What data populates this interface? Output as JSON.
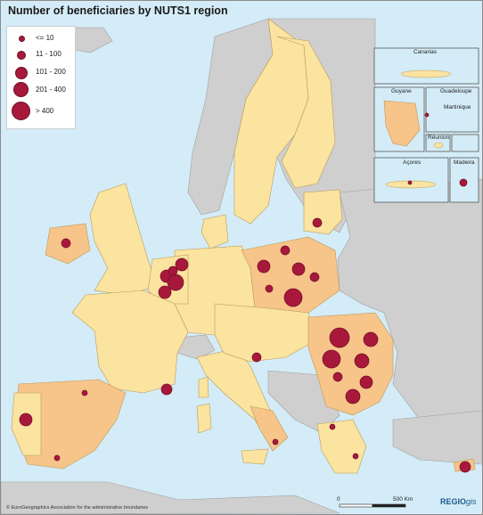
{
  "title": "Number of beneficiaries by NUTS1 region",
  "legend": {
    "items": [
      {
        "label": "<= 10"
      },
      {
        "label": "11 - 100"
      },
      {
        "label": "101 - 200"
      },
      {
        "label": "201 - 400"
      },
      {
        "label": "> 400"
      }
    ]
  },
  "insets": {
    "canarias": "Canarias",
    "guyane": "Guyane",
    "guadeloupe": "Guadeloupe",
    "martinique": "Martinique",
    "reunion": "Réunion",
    "acores": "Açores",
    "madeira": "Madeira"
  },
  "scale": {
    "start": "0",
    "end": "500 Km"
  },
  "copyright": "© EuroGeographics Association for the administrative boundaries",
  "brand": {
    "main": "REGIO",
    "sub": "gis"
  },
  "colors": {
    "sea": "#d4ecf7",
    "non_eu_land": "#cfcfcf",
    "eu_low": "#fbe3a0",
    "eu_high": "#f7c48a",
    "bubble": "#a8183b",
    "bubble_stroke": "#6d0f26"
  }
}
